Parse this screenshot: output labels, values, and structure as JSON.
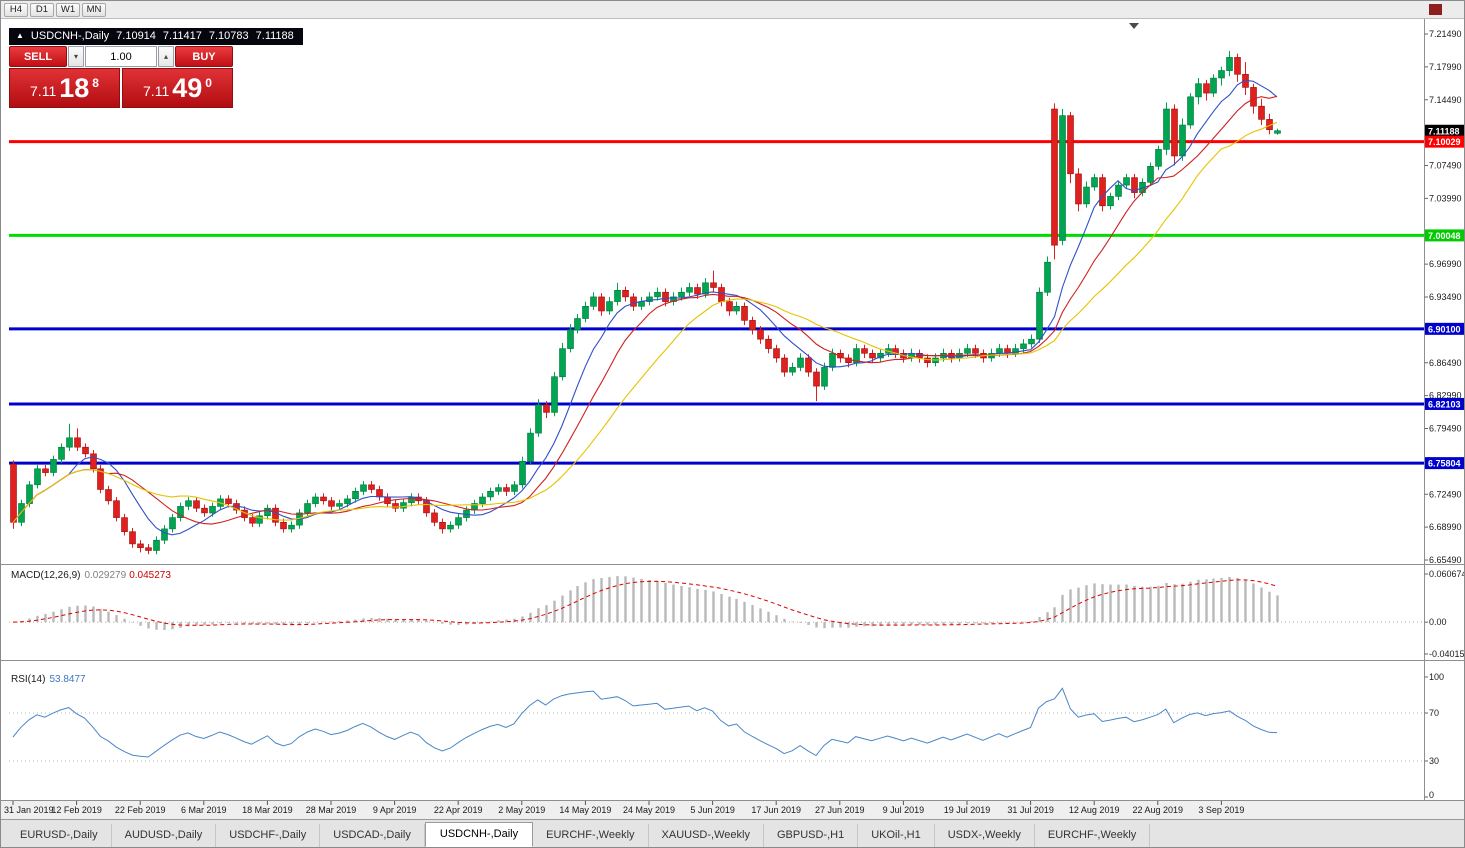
{
  "toolbar": {
    "timeframe_buttons": [
      "H4",
      "D1",
      "W1",
      "MN"
    ]
  },
  "chart_header": {
    "marker": "▲",
    "symbol": "USDCNH-,Daily",
    "open": "7.10914",
    "high": "7.11417",
    "low": "7.10783",
    "close": "7.11188"
  },
  "trade_panel": {
    "sell_label": "SELL",
    "buy_label": "BUY",
    "volume_value": "1.00",
    "sell_price": {
      "big_figure": "7.11",
      "pips": "18",
      "point": "8"
    },
    "buy_price": {
      "big_figure": "7.11",
      "pips": "49",
      "point": "0"
    }
  },
  "price_axis": {
    "gridline_labels": [
      {
        "text": "7.21490",
        "value": 7.2149
      },
      {
        "text": "7.17990",
        "value": 7.1799
      },
      {
        "text": "7.14490",
        "value": 7.1449
      },
      {
        "text": "7.07490",
        "value": 7.0749
      },
      {
        "text": "7.03990",
        "value": 7.0399
      },
      {
        "text": "6.96990",
        "value": 6.9699
      },
      {
        "text": "6.93490",
        "value": 6.9349
      },
      {
        "text": "6.86490",
        "value": 6.8649
      },
      {
        "text": "6.82990",
        "value": 6.8299
      },
      {
        "text": "6.79490",
        "value": 6.7949
      },
      {
        "text": "6.72490",
        "value": 6.7249
      },
      {
        "text": "6.68990",
        "value": 6.6899
      },
      {
        "text": "6.65490",
        "value": 6.6549
      }
    ],
    "badges": [
      {
        "text": "7.11188",
        "value": 7.11188,
        "bg": "#000000"
      },
      {
        "text": "7.10029",
        "value": 7.10029,
        "bg": "#ff0000"
      },
      {
        "text": "7.00048",
        "value": 7.00048,
        "bg": "#00cc00"
      },
      {
        "text": "6.90100",
        "value": 6.901,
        "bg": "#0000cc"
      },
      {
        "text": "6.82103",
        "value": 6.82103,
        "bg": "#0000cc"
      },
      {
        "text": "6.75804",
        "value": 6.75804,
        "bg": "#0000cc"
      }
    ]
  },
  "hlines": [
    {
      "value": 7.10029,
      "color": "#ff0000",
      "width": 3
    },
    {
      "value": 7.00048,
      "color": "#00dd00",
      "width": 3
    },
    {
      "value": 6.901,
      "color": "#0000cc",
      "width": 3
    },
    {
      "value": 6.82103,
      "color": "#0000cc",
      "width": 3
    },
    {
      "value": 6.75804,
      "color": "#0000cc",
      "width": 3
    }
  ],
  "macd_panel": {
    "label": "MACD(12,26,9)",
    "main_value": "0.029279",
    "signal_value": "0.045273",
    "histogram_color": "#b8b8b8",
    "signal_color": "#dd0000",
    "axis_labels": [
      {
        "text": "0.060674",
        "value": 0.060674
      },
      {
        "text": "0.00",
        "value": 0
      },
      {
        "text": "-0.040152",
        "value": -0.040152
      }
    ]
  },
  "rsi_panel": {
    "label": "RSI(14)",
    "value": "53.8477",
    "line_color": "#4a86c8",
    "levels": [
      70,
      30
    ],
    "axis_labels": [
      {
        "text": "100",
        "value": 100
      },
      {
        "text": "70",
        "value": 70
      },
      {
        "text": "30",
        "value": 30
      },
      {
        "text": "0",
        "value": 0
      }
    ]
  },
  "date_axis": {
    "label_every": 8,
    "labels": [
      "31 Jan 2019",
      "12 Feb 2019",
      "22 Feb 2019",
      "6 Mar 2019",
      "18 Mar 2019",
      "28 Mar 2019",
      "9 Apr 2019",
      "22 Apr 2019",
      "2 May 2019",
      "14 May 2019",
      "24 May 2019",
      "5 Jun 2019",
      "17 Jun 2019",
      "27 Jun 2019",
      "9 Jul 2019",
      "19 Jul 2019",
      "31 Jul 2019",
      "12 Aug 2019",
      "22 Aug 2019",
      "3 Sep 2019"
    ]
  },
  "tab_bar": {
    "tabs": [
      {
        "label": "EURUSD-,Daily",
        "active": false
      },
      {
        "label": "AUDUSD-,Daily",
        "active": false
      },
      {
        "label": "USDCHF-,Daily",
        "active": false
      },
      {
        "label": "USDCAD-,Daily",
        "active": false
      },
      {
        "label": "USDCNH-,Daily",
        "active": true
      },
      {
        "label": "EURCHF-,Weekly",
        "active": false
      },
      {
        "label": "XAUUSD-,Weekly",
        "active": false
      },
      {
        "label": "GBPUSD-,H1",
        "active": false
      },
      {
        "label": "UKOil-,H1",
        "active": false
      },
      {
        "label": "USDX-,Weekly",
        "active": false
      },
      {
        "label": "EURCHF-,Weekly",
        "active": false
      }
    ]
  },
  "chart_data": {
    "type": "candlestick",
    "symbol": "USDCNH",
    "timeframe": "Daily",
    "ylim": [
      6.6549,
      7.2149
    ],
    "ohlc_last": {
      "open": 7.10914,
      "high": 7.11417,
      "low": 7.10783,
      "close": 7.11188
    },
    "colors": {
      "bull": "#00a551",
      "bull_dark": "#00763a",
      "bear": "#e01f1f",
      "bear_dark": "#9c1212"
    },
    "moving_averages": [
      {
        "name": "fast",
        "window": 8,
        "color": "#3050c8"
      },
      {
        "name": "mid",
        "window": 13,
        "color": "#d02020"
      },
      {
        "name": "slow",
        "window": 21,
        "color": "#e6c300"
      }
    ],
    "candles": [
      [
        6.757,
        6.761,
        6.688,
        6.695
      ],
      [
        6.695,
        6.719,
        6.691,
        6.715
      ],
      [
        6.715,
        6.739,
        6.711,
        6.735
      ],
      [
        6.735,
        6.756,
        6.731,
        6.752
      ],
      [
        6.752,
        6.756,
        6.744,
        6.748
      ],
      [
        6.748,
        6.766,
        6.744,
        6.762
      ],
      [
        6.762,
        6.779,
        6.758,
        6.775
      ],
      [
        6.775,
        6.8,
        6.771,
        6.785
      ],
      [
        6.785,
        6.795,
        6.771,
        6.775
      ],
      [
        6.775,
        6.779,
        6.764,
        6.768
      ],
      [
        6.768,
        6.772,
        6.748,
        6.752
      ],
      [
        6.752,
        6.756,
        6.726,
        6.73
      ],
      [
        6.73,
        6.734,
        6.714,
        6.718
      ],
      [
        6.718,
        6.722,
        6.696,
        6.7
      ],
      [
        6.7,
        6.704,
        6.681,
        6.685
      ],
      [
        6.685,
        6.689,
        6.668,
        6.672
      ],
      [
        6.672,
        6.676,
        6.663,
        6.668
      ],
      [
        6.668,
        6.672,
        6.661,
        6.665
      ],
      [
        6.665,
        6.68,
        6.661,
        6.676
      ],
      [
        6.676,
        6.692,
        6.672,
        6.688
      ],
      [
        6.688,
        6.704,
        6.684,
        6.7
      ],
      [
        6.7,
        6.716,
        6.696,
        6.712
      ],
      [
        6.712,
        6.722,
        6.708,
        6.718
      ],
      [
        6.718,
        6.722,
        6.706,
        6.71
      ],
      [
        6.71,
        6.714,
        6.701,
        6.705
      ],
      [
        6.705,
        6.716,
        6.701,
        6.712
      ],
      [
        6.712,
        6.724,
        6.708,
        6.72
      ],
      [
        6.72,
        6.724,
        6.711,
        6.715
      ],
      [
        6.715,
        6.719,
        6.704,
        6.708
      ],
      [
        6.708,
        6.712,
        6.696,
        6.7
      ],
      [
        6.7,
        6.704,
        6.69,
        6.694
      ],
      [
        6.694,
        6.706,
        6.69,
        6.702
      ],
      [
        6.702,
        6.714,
        6.698,
        6.71
      ],
      [
        6.71,
        6.714,
        6.691,
        6.695
      ],
      [
        6.695,
        6.699,
        6.684,
        6.688
      ],
      [
        6.688,
        6.696,
        6.684,
        6.692
      ],
      [
        6.692,
        6.709,
        6.688,
        6.705
      ],
      [
        6.705,
        6.719,
        6.701,
        6.715
      ],
      [
        6.715,
        6.726,
        6.711,
        6.722
      ],
      [
        6.722,
        6.726,
        6.714,
        6.718
      ],
      [
        6.718,
        6.722,
        6.708,
        6.712
      ],
      [
        6.712,
        6.719,
        6.708,
        6.715
      ],
      [
        6.715,
        6.724,
        6.711,
        6.72
      ],
      [
        6.72,
        6.732,
        6.716,
        6.728
      ],
      [
        6.728,
        6.739,
        6.724,
        6.735
      ],
      [
        6.735,
        6.739,
        6.726,
        6.73
      ],
      [
        6.73,
        6.734,
        6.718,
        6.722
      ],
      [
        6.722,
        6.726,
        6.711,
        6.715
      ],
      [
        6.715,
        6.719,
        6.706,
        6.71
      ],
      [
        6.71,
        6.72,
        6.706,
        6.716
      ],
      [
        6.716,
        6.726,
        6.712,
        6.722
      ],
      [
        6.722,
        6.726,
        6.714,
        6.718
      ],
      [
        6.718,
        6.722,
        6.701,
        6.705
      ],
      [
        6.705,
        6.709,
        6.691,
        6.695
      ],
      [
        6.695,
        6.699,
        6.683,
        6.688
      ],
      [
        6.688,
        6.696,
        6.684,
        6.692
      ],
      [
        6.692,
        6.704,
        6.688,
        6.7
      ],
      [
        6.7,
        6.712,
        6.696,
        6.708
      ],
      [
        6.708,
        6.719,
        6.704,
        6.715
      ],
      [
        6.715,
        6.726,
        6.711,
        6.722
      ],
      [
        6.722,
        6.732,
        6.718,
        6.728
      ],
      [
        6.728,
        6.736,
        6.724,
        6.732
      ],
      [
        6.732,
        6.736,
        6.723,
        6.728
      ],
      [
        6.728,
        6.739,
        6.724,
        6.735
      ],
      [
        6.735,
        6.765,
        6.731,
        6.76
      ],
      [
        6.76,
        6.795,
        6.756,
        6.79
      ],
      [
        6.79,
        6.826,
        6.786,
        6.82
      ],
      [
        6.82,
        6.824,
        6.806,
        6.812
      ],
      [
        6.812,
        6.855,
        6.808,
        6.85
      ],
      [
        6.85,
        6.886,
        6.846,
        6.88
      ],
      [
        6.88,
        6.906,
        6.876,
        6.9
      ],
      [
        6.9,
        6.917,
        6.896,
        6.912
      ],
      [
        6.912,
        6.93,
        6.908,
        6.925
      ],
      [
        6.925,
        6.94,
        6.921,
        6.935
      ],
      [
        6.935,
        6.939,
        6.915,
        6.92
      ],
      [
        6.92,
        6.935,
        6.916,
        6.93
      ],
      [
        6.93,
        6.95,
        6.926,
        6.942
      ],
      [
        6.942,
        6.946,
        6.93,
        6.935
      ],
      [
        6.935,
        6.939,
        6.92,
        6.925
      ],
      [
        6.925,
        6.935,
        6.921,
        6.93
      ],
      [
        6.93,
        6.94,
        6.926,
        6.935
      ],
      [
        6.935,
        6.945,
        6.931,
        6.94
      ],
      [
        6.94,
        6.944,
        6.925,
        6.93
      ],
      [
        6.93,
        6.94,
        6.926,
        6.935
      ],
      [
        6.935,
        6.945,
        6.931,
        6.94
      ],
      [
        6.94,
        6.95,
        6.936,
        6.945
      ],
      [
        6.945,
        6.949,
        6.933,
        6.938
      ],
      [
        6.938,
        6.955,
        6.934,
        6.95
      ],
      [
        6.95,
        6.963,
        6.94,
        6.945
      ],
      [
        6.945,
        6.949,
        6.925,
        6.93
      ],
      [
        6.93,
        6.934,
        6.915,
        6.92
      ],
      [
        6.92,
        6.93,
        6.916,
        6.925
      ],
      [
        6.925,
        6.929,
        6.905,
        6.91
      ],
      [
        6.91,
        6.914,
        6.895,
        6.9
      ],
      [
        6.9,
        6.904,
        6.885,
        6.89
      ],
      [
        6.89,
        6.894,
        6.875,
        6.88
      ],
      [
        6.88,
        6.884,
        6.865,
        6.87
      ],
      [
        6.87,
        6.874,
        6.85,
        6.855
      ],
      [
        6.855,
        6.865,
        6.851,
        6.86
      ],
      [
        6.86,
        6.875,
        6.856,
        6.87
      ],
      [
        6.87,
        6.874,
        6.85,
        6.855
      ],
      [
        6.855,
        6.859,
        6.824,
        6.84
      ],
      [
        6.84,
        6.865,
        6.836,
        6.86
      ],
      [
        6.86,
        6.88,
        6.856,
        6.875
      ],
      [
        6.875,
        6.879,
        6.865,
        6.87
      ],
      [
        6.87,
        6.874,
        6.86,
        6.865
      ],
      [
        6.865,
        6.885,
        6.861,
        6.88
      ],
      [
        6.88,
        6.884,
        6.87,
        6.875
      ],
      [
        6.875,
        6.879,
        6.865,
        6.87
      ],
      [
        6.87,
        6.88,
        6.866,
        6.875
      ],
      [
        6.875,
        6.885,
        6.871,
        6.88
      ],
      [
        6.88,
        6.884,
        6.87,
        6.875
      ],
      [
        6.875,
        6.879,
        6.865,
        6.87
      ],
      [
        6.87,
        6.88,
        6.866,
        6.875
      ],
      [
        6.875,
        6.879,
        6.865,
        6.87
      ],
      [
        6.87,
        6.874,
        6.86,
        6.865
      ],
      [
        6.865,
        6.875,
        6.861,
        6.87
      ],
      [
        6.87,
        6.88,
        6.866,
        6.875
      ],
      [
        6.875,
        6.879,
        6.865,
        6.87
      ],
      [
        6.87,
        6.88,
        6.866,
        6.875
      ],
      [
        6.875,
        6.885,
        6.871,
        6.88
      ],
      [
        6.88,
        6.884,
        6.87,
        6.875
      ],
      [
        6.875,
        6.879,
        6.865,
        6.87
      ],
      [
        6.87,
        6.88,
        6.866,
        6.875
      ],
      [
        6.875,
        6.885,
        6.871,
        6.88
      ],
      [
        6.88,
        6.884,
        6.87,
        6.875
      ],
      [
        6.875,
        6.885,
        6.871,
        6.88
      ],
      [
        6.88,
        6.89,
        6.876,
        6.885
      ],
      [
        6.885,
        6.895,
        6.881,
        6.89
      ],
      [
        6.89,
        6.945,
        6.886,
        6.94
      ],
      [
        6.94,
        6.978,
        6.936,
        6.972
      ],
      [
        7.135,
        7.141,
        6.975,
        6.99
      ],
      [
        6.995,
        7.135,
        6.99,
        7.128
      ],
      [
        7.128,
        7.132,
        7.056,
        7.066
      ],
      [
        7.066,
        7.072,
        7.026,
        7.034
      ],
      [
        7.034,
        7.058,
        7.03,
        7.052
      ],
      [
        7.052,
        7.066,
        7.048,
        7.062
      ],
      [
        7.062,
        7.066,
        7.026,
        7.032
      ],
      [
        7.032,
        7.046,
        7.028,
        7.042
      ],
      [
        7.042,
        7.058,
        7.038,
        7.054
      ],
      [
        7.054,
        7.066,
        7.05,
        7.062
      ],
      [
        7.062,
        7.066,
        7.04,
        7.046
      ],
      [
        7.046,
        7.061,
        7.042,
        7.057
      ],
      [
        7.057,
        7.078,
        7.053,
        7.074
      ],
      [
        7.074,
        7.096,
        7.07,
        7.092
      ],
      [
        7.092,
        7.142,
        7.086,
        7.135
      ],
      [
        7.135,
        7.14,
        7.075,
        7.085
      ],
      [
        7.085,
        7.125,
        7.08,
        7.118
      ],
      [
        7.118,
        7.152,
        7.114,
        7.148
      ],
      [
        7.148,
        7.168,
        7.14,
        7.162
      ],
      [
        7.162,
        7.166,
        7.144,
        7.152
      ],
      [
        7.152,
        7.172,
        7.148,
        7.168
      ],
      [
        7.168,
        7.18,
        7.16,
        7.176
      ],
      [
        7.176,
        7.197,
        7.17,
        7.19
      ],
      [
        7.19,
        7.194,
        7.164,
        7.172
      ],
      [
        7.172,
        7.185,
        7.15,
        7.158
      ],
      [
        7.158,
        7.162,
        7.13,
        7.138
      ],
      [
        7.138,
        7.146,
        7.118,
        7.124
      ],
      [
        7.124,
        7.13,
        7.108,
        7.113
      ],
      [
        7.1091,
        7.1142,
        7.1078,
        7.1119
      ]
    ]
  }
}
